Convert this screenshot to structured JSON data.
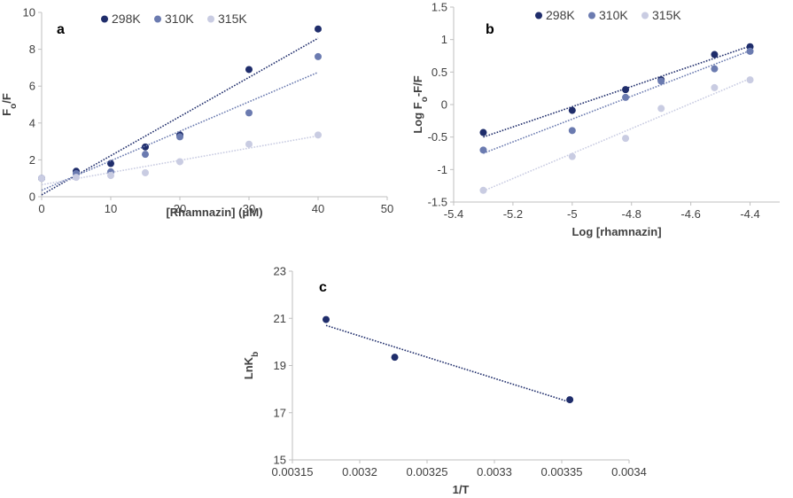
{
  "chart_data": [
    {
      "panel_label": "a",
      "type": "scatter",
      "xlabel": "[Rhamnazin] (μM)",
      "ylabel_main": "F",
      "ylabel_sub": "o",
      "ylabel_tail": "/F",
      "xlim": [
        0,
        50
      ],
      "ylim": [
        0,
        10
      ],
      "xticks": [
        0,
        10,
        20,
        30,
        40,
        50
      ],
      "yticks": [
        0,
        2,
        4,
        6,
        8,
        10
      ],
      "xtick_labels": [
        "0",
        "10",
        "20",
        "30",
        "40",
        "50"
      ],
      "ytick_labels": [
        "0",
        "2",
        "4",
        "6",
        "8",
        "10"
      ],
      "legend": "top",
      "series": [
        {
          "name": "298K",
          "color": "#1f2d6b",
          "x": [
            0,
            5,
            10,
            15,
            20,
            30,
            40
          ],
          "y": [
            1.0,
            1.38,
            1.8,
            2.7,
            3.35,
            6.9,
            9.1
          ],
          "trendline": {
            "x": [
              0,
              40
            ],
            "y": [
              0.1,
              8.6
            ]
          }
        },
        {
          "name": "310K",
          "color": "#6b7bb0",
          "x": [
            0,
            5,
            10,
            15,
            20,
            30,
            40
          ],
          "y": [
            1.0,
            1.25,
            1.35,
            2.3,
            3.25,
            4.55,
            7.6
          ],
          "trendline": {
            "x": [
              0,
              40
            ],
            "y": [
              0.35,
              6.75
            ]
          }
        },
        {
          "name": "315K",
          "color": "#c9cce2",
          "x": [
            0,
            5,
            10,
            15,
            20,
            30,
            40
          ],
          "y": [
            1.0,
            1.05,
            1.15,
            1.3,
            1.9,
            2.85,
            3.35
          ],
          "trendline": {
            "x": [
              0,
              40
            ],
            "y": [
              0.65,
              3.3
            ]
          }
        }
      ]
    },
    {
      "panel_label": "b",
      "type": "scatter",
      "xlabel": "Log [rhamnazin]",
      "ylabel_main": "Log F",
      "ylabel_sub": "o",
      "ylabel_tail": "-F/F",
      "xlim": [
        -5.4,
        -4.3
      ],
      "ylim": [
        -1.5,
        1.5
      ],
      "xticks": [
        -5.4,
        -5.2,
        -5.0,
        -4.8,
        -4.6,
        -4.4
      ],
      "yticks": [
        -1.5,
        -1.0,
        -0.5,
        0,
        0.5,
        1.0,
        1.5
      ],
      "xtick_labels": [
        "-5.4",
        "-5.2",
        "-5",
        "-4.8",
        "-4.6",
        "-4.4"
      ],
      "ytick_labels": [
        "-1.5",
        "-1",
        "-0.5",
        "0",
        "0.5",
        "1",
        "1.5"
      ],
      "legend": "top",
      "series": [
        {
          "name": "298K",
          "color": "#1f2d6b",
          "x": [
            -5.3,
            -5.0,
            -4.82,
            -4.7,
            -4.52,
            -4.4
          ],
          "y": [
            -0.43,
            -0.09,
            0.23,
            0.38,
            0.77,
            0.89
          ],
          "trendline": {
            "x": [
              -5.3,
              -4.4
            ],
            "y": [
              -0.5,
              0.9
            ]
          }
        },
        {
          "name": "310K",
          "color": "#6b7bb0",
          "x": [
            -5.3,
            -5.0,
            -4.82,
            -4.7,
            -4.52,
            -4.4
          ],
          "y": [
            -0.7,
            -0.4,
            0.11,
            0.36,
            0.55,
            0.82
          ],
          "trendline": {
            "x": [
              -5.3,
              -4.4
            ],
            "y": [
              -0.75,
              0.83
            ]
          }
        },
        {
          "name": "315K",
          "color": "#c9cce2",
          "x": [
            -5.3,
            -5.0,
            -4.82,
            -4.7,
            -4.52,
            -4.4
          ],
          "y": [
            -1.32,
            -0.8,
            -0.52,
            -0.06,
            0.26,
            0.38
          ],
          "trendline": {
            "x": [
              -5.3,
              -4.4
            ],
            "y": [
              -1.33,
              0.4
            ]
          }
        }
      ]
    },
    {
      "panel_label": "c",
      "type": "scatter",
      "xlabel": "1/T",
      "ylabel_main": "LnK",
      "ylabel_sub": "b",
      "ylabel_tail": "",
      "xlim": [
        0.00315,
        0.0034
      ],
      "ylim": [
        15,
        23
      ],
      "xticks": [
        0.00315,
        0.0032,
        0.00325,
        0.0033,
        0.00335,
        0.0034
      ],
      "yticks": [
        15,
        17,
        19,
        21,
        23
      ],
      "xtick_labels": [
        "0.00315",
        "0.0032",
        "0.00325",
        "0.0033",
        "0.00335",
        "0.0034"
      ],
      "ytick_labels": [
        "15",
        "17",
        "19",
        "21",
        "23"
      ],
      "series": [
        {
          "color": "#1f2d6b",
          "x": [
            0.003175,
            0.003226,
            0.003356
          ],
          "y": [
            20.95,
            19.35,
            17.55
          ],
          "trendline": {
            "x": [
              0.003175,
              0.003356
            ],
            "y": [
              20.7,
              17.45
            ]
          }
        }
      ]
    }
  ]
}
